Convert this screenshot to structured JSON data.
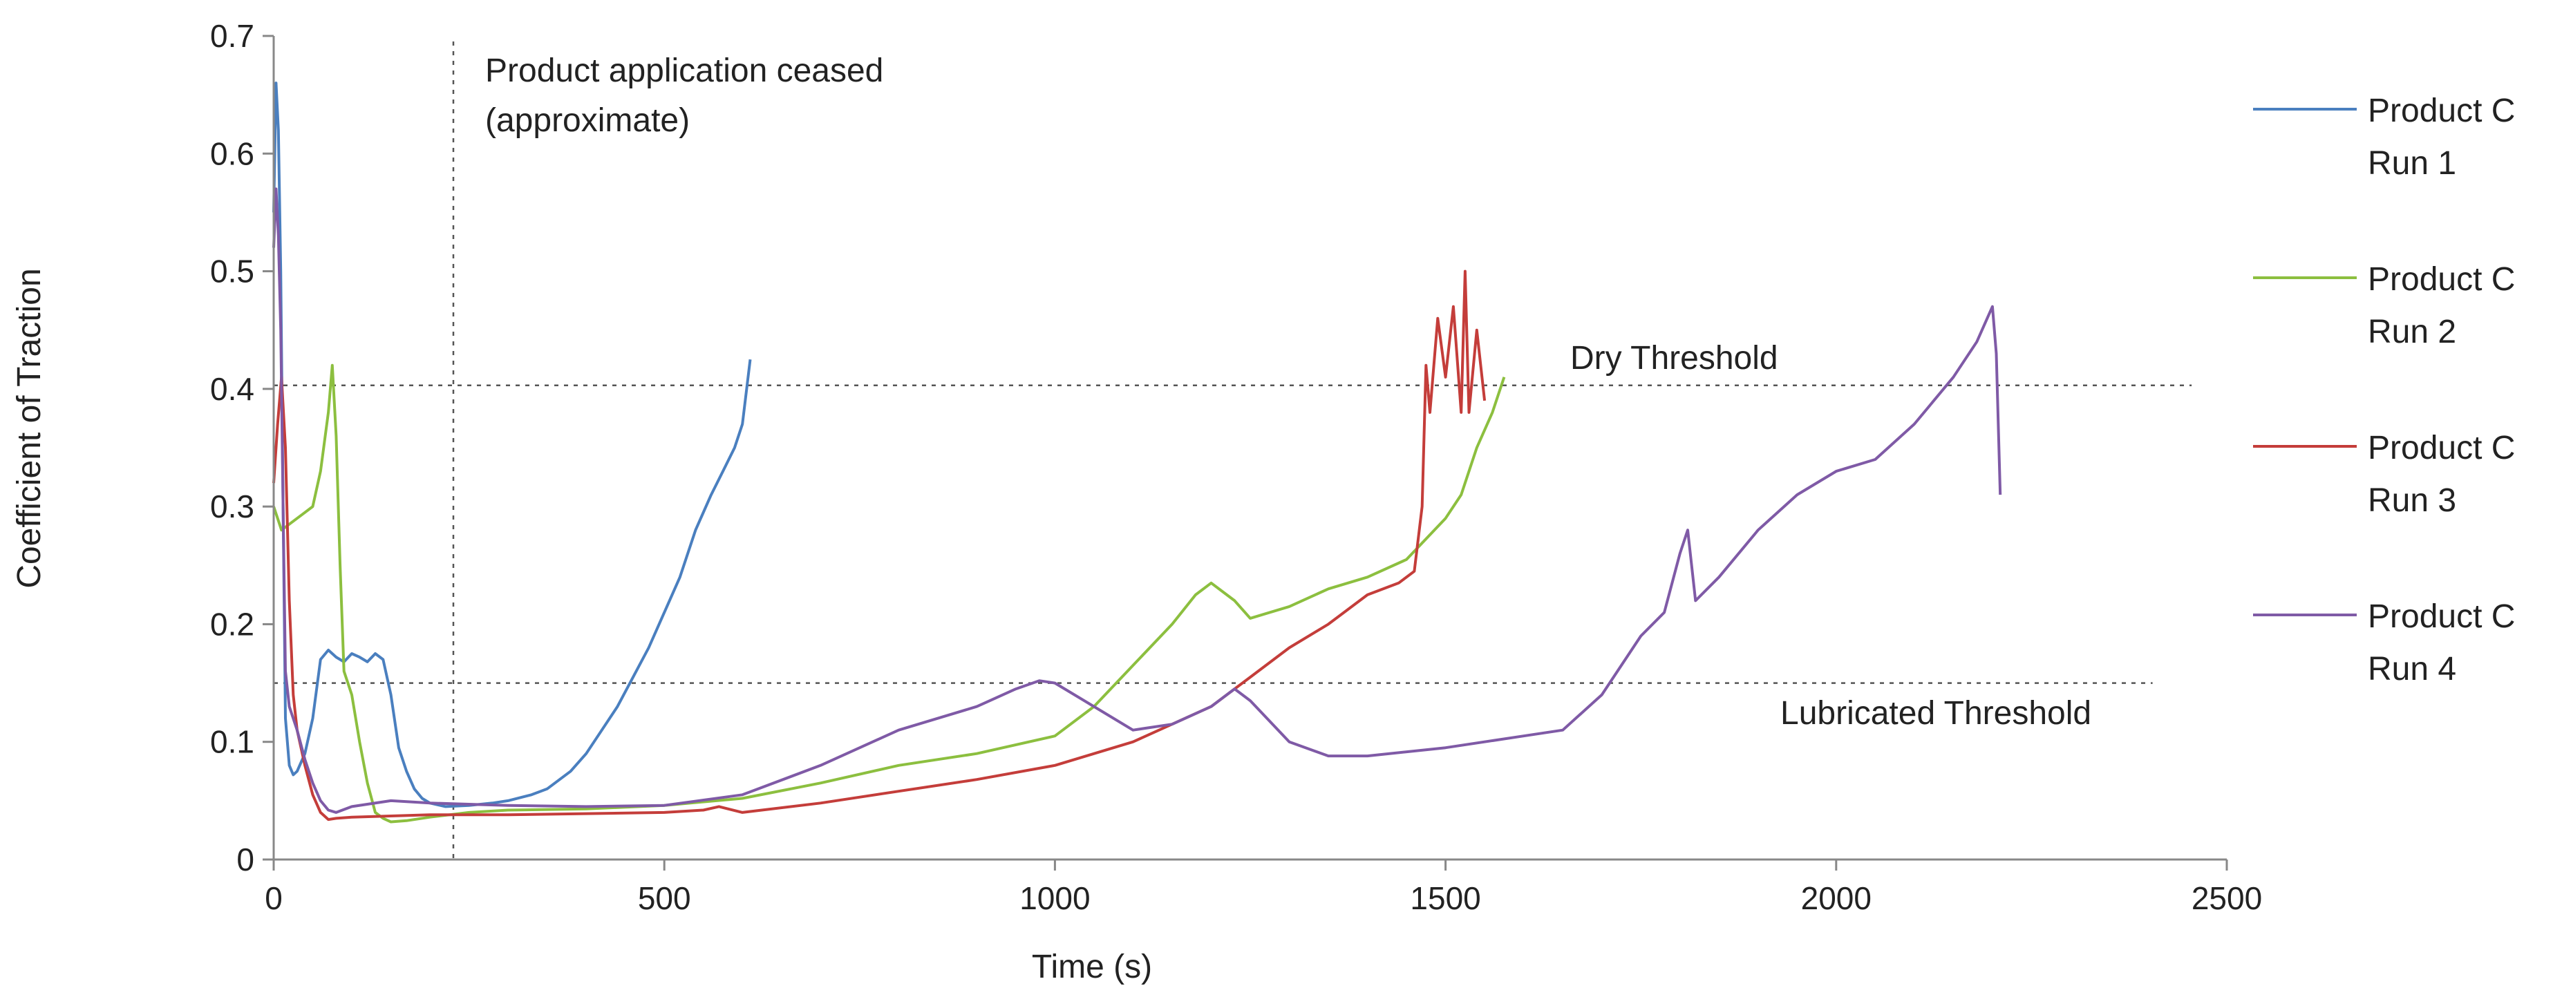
{
  "chart_data": {
    "type": "line",
    "xlabel": "Time (s)",
    "ylabel": "Coefficient of Traction",
    "xlim": [
      0,
      2500
    ],
    "ylim": [
      0,
      0.7
    ],
    "x_ticks": [
      "0",
      "500",
      "1000",
      "1500",
      "2000",
      "2500"
    ],
    "y_ticks": [
      "0",
      "0.1",
      "0.2",
      "0.3",
      "0.4",
      "0.5",
      "0.6",
      "0.7"
    ],
    "grid": false,
    "legend_position": "right",
    "reference_lines": [
      {
        "orientation": "vertical",
        "x": 230,
        "label_lines": [
          "Product application ceased",
          "(approximate)"
        ]
      },
      {
        "orientation": "horizontal",
        "y": 0.403,
        "label": "Dry Threshold"
      },
      {
        "orientation": "horizontal",
        "y": 0.15,
        "label": "Lubricated Threshold"
      }
    ],
    "series": [
      {
        "name": "Product C Run 1",
        "label_lines": [
          "Product C",
          "Run 1"
        ],
        "color": "#4a7fbf",
        "x": [
          0,
          3,
          6,
          9,
          12,
          15,
          20,
          25,
          30,
          40,
          50,
          60,
          70,
          80,
          90,
          100,
          110,
          120,
          130,
          140,
          150,
          160,
          170,
          180,
          190,
          200,
          220,
          250,
          280,
          300,
          330,
          350,
          380,
          400,
          420,
          440,
          460,
          480,
          500,
          520,
          540,
          560,
          575,
          590,
          600,
          610
        ],
        "y": [
          0.55,
          0.66,
          0.62,
          0.5,
          0.3,
          0.12,
          0.08,
          0.072,
          0.075,
          0.09,
          0.12,
          0.17,
          0.178,
          0.172,
          0.168,
          0.175,
          0.172,
          0.168,
          0.175,
          0.17,
          0.14,
          0.095,
          0.075,
          0.06,
          0.052,
          0.048,
          0.045,
          0.046,
          0.048,
          0.05,
          0.055,
          0.06,
          0.075,
          0.09,
          0.11,
          0.13,
          0.155,
          0.18,
          0.21,
          0.24,
          0.28,
          0.31,
          0.33,
          0.35,
          0.37,
          0.425
        ]
      },
      {
        "name": "Product C Run 2",
        "label_lines": [
          "Product C",
          "Run 2"
        ],
        "color": "#8cbf3f",
        "x": [
          0,
          5,
          10,
          20,
          30,
          40,
          50,
          60,
          70,
          75,
          80,
          85,
          90,
          95,
          100,
          110,
          120,
          130,
          140,
          150,
          170,
          200,
          250,
          300,
          400,
          500,
          600,
          700,
          800,
          900,
          1000,
          1050,
          1100,
          1150,
          1180,
          1200,
          1230,
          1250,
          1300,
          1350,
          1400,
          1450,
          1500,
          1520,
          1540,
          1560,
          1575
        ],
        "y": [
          0.3,
          0.29,
          0.28,
          0.285,
          0.29,
          0.295,
          0.3,
          0.33,
          0.38,
          0.42,
          0.36,
          0.25,
          0.16,
          0.15,
          0.14,
          0.1,
          0.065,
          0.04,
          0.035,
          0.032,
          0.033,
          0.036,
          0.04,
          0.042,
          0.043,
          0.046,
          0.052,
          0.065,
          0.08,
          0.09,
          0.105,
          0.13,
          0.165,
          0.2,
          0.225,
          0.235,
          0.22,
          0.205,
          0.215,
          0.23,
          0.24,
          0.255,
          0.29,
          0.31,
          0.35,
          0.38,
          0.41
        ]
      },
      {
        "name": "Product C Run 3",
        "label_lines": [
          "Product C",
          "Run 3"
        ],
        "color": "#c43d3a",
        "x": [
          0,
          5,
          10,
          15,
          20,
          25,
          30,
          40,
          50,
          60,
          70,
          80,
          100,
          150,
          200,
          300,
          400,
          500,
          550,
          570,
          600,
          700,
          800,
          900,
          1000,
          1100,
          1200,
          1250,
          1300,
          1350,
          1400,
          1440,
          1460,
          1470,
          1475,
          1480,
          1490,
          1500,
          1510,
          1520,
          1525,
          1530,
          1540,
          1550
        ],
        "y": [
          0.32,
          0.37,
          0.41,
          0.35,
          0.22,
          0.14,
          0.11,
          0.08,
          0.055,
          0.04,
          0.034,
          0.035,
          0.036,
          0.037,
          0.038,
          0.038,
          0.039,
          0.04,
          0.042,
          0.045,
          0.04,
          0.048,
          0.058,
          0.068,
          0.08,
          0.1,
          0.13,
          0.155,
          0.18,
          0.2,
          0.225,
          0.235,
          0.245,
          0.3,
          0.42,
          0.38,
          0.46,
          0.41,
          0.47,
          0.38,
          0.5,
          0.38,
          0.45,
          0.39
        ]
      },
      {
        "name": "Product C Run 4",
        "label_lines": [
          "Product C",
          "Run 4"
        ],
        "color": "#7f5aa6",
        "x": [
          0,
          3,
          6,
          9,
          12,
          15,
          20,
          30,
          40,
          50,
          60,
          70,
          80,
          100,
          150,
          200,
          300,
          400,
          500,
          600,
          700,
          800,
          900,
          950,
          980,
          1000,
          1050,
          1100,
          1150,
          1200,
          1230,
          1250,
          1300,
          1350,
          1400,
          1500,
          1600,
          1650,
          1700,
          1750,
          1780,
          1800,
          1810,
          1820,
          1850,
          1900,
          1950,
          2000,
          2050,
          2100,
          2150,
          2180,
          2200,
          2205,
          2210
        ],
        "y": [
          0.52,
          0.57,
          0.53,
          0.45,
          0.3,
          0.16,
          0.13,
          0.11,
          0.085,
          0.065,
          0.05,
          0.042,
          0.04,
          0.045,
          0.05,
          0.048,
          0.046,
          0.045,
          0.046,
          0.055,
          0.08,
          0.11,
          0.13,
          0.145,
          0.152,
          0.15,
          0.13,
          0.11,
          0.115,
          0.13,
          0.145,
          0.135,
          0.1,
          0.088,
          0.088,
          0.095,
          0.105,
          0.11,
          0.14,
          0.19,
          0.21,
          0.26,
          0.28,
          0.22,
          0.24,
          0.28,
          0.31,
          0.33,
          0.34,
          0.37,
          0.41,
          0.44,
          0.47,
          0.43,
          0.31
        ]
      }
    ]
  }
}
